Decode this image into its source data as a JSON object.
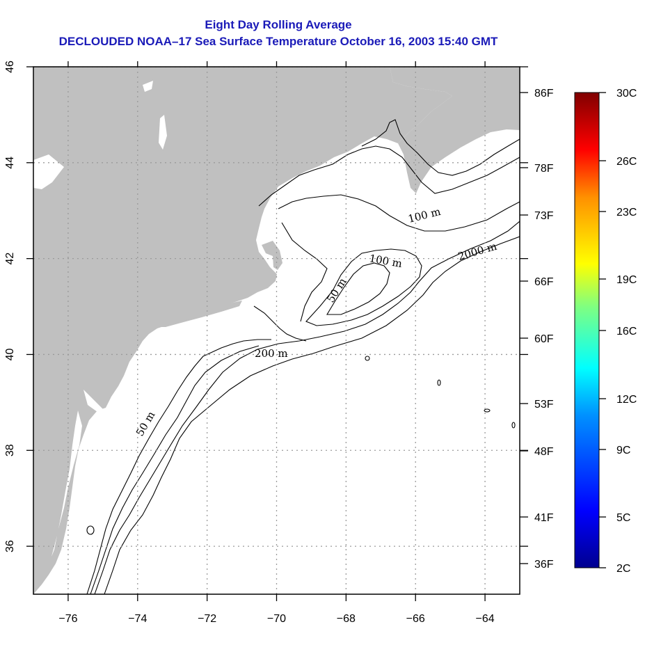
{
  "title": {
    "line1": "Eight Day Rolling Average",
    "line2": "DECLOUDED NOAA–17 Sea Surface Temperature October 16, 2003 15:40 GMT"
  },
  "map": {
    "x_axis": {
      "ticks": [
        {
          "value": -76,
          "label": "−76"
        },
        {
          "value": -74,
          "label": "−74"
        },
        {
          "value": -72,
          "label": "−72"
        },
        {
          "value": -70,
          "label": "−70"
        },
        {
          "value": -68,
          "label": "−68"
        },
        {
          "value": -66,
          "label": "−66"
        },
        {
          "value": -64,
          "label": "−64"
        }
      ],
      "range": [
        -77,
        -63
      ]
    },
    "y_axis": {
      "ticks": [
        {
          "value": 36,
          "label": "36"
        },
        {
          "value": 38,
          "label": "38"
        },
        {
          "value": 40,
          "label": "40"
        },
        {
          "value": 42,
          "label": "42"
        },
        {
          "value": 44,
          "label": "44"
        },
        {
          "value": 46,
          "label": "46"
        }
      ],
      "range": [
        35,
        46
      ]
    },
    "grid": true,
    "land_color": "#c0c0c0",
    "contour_labels": {
      "c50_south": "50 m",
      "c200_south": "200 m",
      "c50_georges": "50 m",
      "c100_georges": "100 m",
      "c100_scotian": "100 m",
      "c2000": "2000 m"
    }
  },
  "colorbar": {
    "fahrenheit": [
      "86F",
      "78F",
      "73F",
      "66F",
      "60F",
      "53F",
      "48F",
      "41F",
      "36F"
    ],
    "celsius": [
      "30C",
      "26C",
      "23C",
      "19C",
      "16C",
      "12C",
      "9C",
      "5C",
      "2C"
    ]
  }
}
